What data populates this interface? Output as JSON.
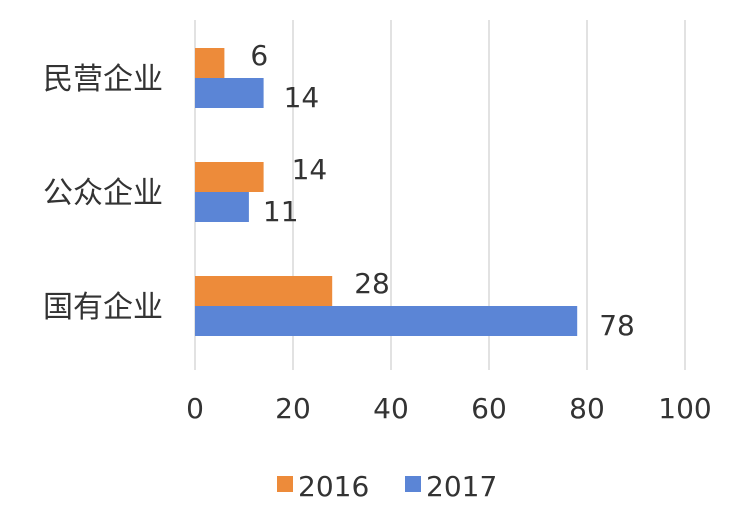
{
  "chart_data": {
    "type": "bar",
    "orientation": "horizontal",
    "categories": [
      "民营企业",
      "公众企业",
      "国有企业"
    ],
    "series": [
      {
        "name": "2016",
        "values": [
          6,
          14,
          28
        ],
        "color": "#ED8B3A"
      },
      {
        "name": "2017",
        "values": [
          14,
          11,
          78
        ],
        "color": "#5B85D6"
      }
    ],
    "xlim": [
      0,
      100
    ],
    "xticks": [
      "0",
      "20",
      "40",
      "60",
      "80",
      "100"
    ],
    "title": "",
    "xlabel": "",
    "ylabel": "",
    "grid": true,
    "legend": "bottom"
  }
}
